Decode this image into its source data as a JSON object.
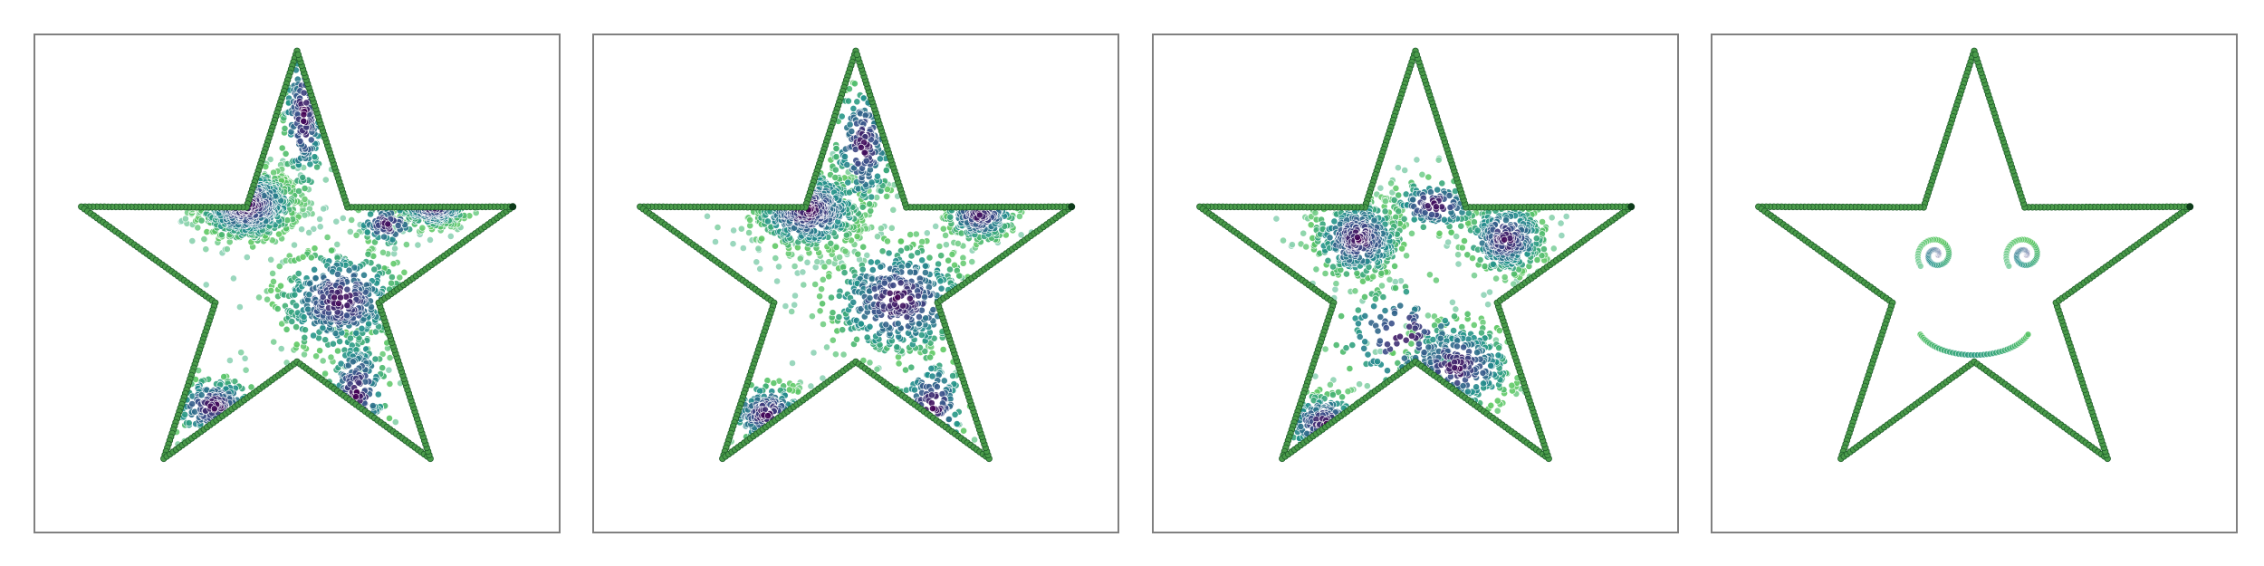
{
  "chart_data": [
    {
      "type": "scatter",
      "title": "",
      "xlabel": "",
      "ylabel": "",
      "xlim": [
        -1.1,
        1.1
      ],
      "ylim": [
        -1.08,
        1.02
      ],
      "grid": false,
      "boundary": {
        "shape": "star",
        "points": 5,
        "outer_radius": 0.95,
        "inner_radius": 0.36,
        "color": "#4a9a4a",
        "edge_color": "#1f5e2a"
      },
      "clusters": [
        {
          "x": -0.21,
          "y": 0.3,
          "sx": 0.11,
          "sy": 0.08,
          "n": 520
        },
        {
          "x": 0.57,
          "y": 0.3,
          "sx": 0.08,
          "sy": 0.05,
          "n": 200
        },
        {
          "x": 0.03,
          "y": 0.68,
          "sx": 0.05,
          "sy": 0.18,
          "n": 180
        },
        {
          "x": 0.18,
          "y": -0.1,
          "sx": 0.14,
          "sy": 0.12,
          "n": 430
        },
        {
          "x": 0.25,
          "y": -0.5,
          "sx": 0.07,
          "sy": 0.15,
          "n": 140
        },
        {
          "x": -0.35,
          "y": -0.55,
          "sx": 0.1,
          "sy": 0.07,
          "n": 170
        },
        {
          "x": 0.38,
          "y": 0.22,
          "sx": 0.07,
          "sy": 0.05,
          "n": 90
        }
      ]
    },
    {
      "type": "scatter",
      "title": "",
      "xlabel": "",
      "ylabel": "",
      "xlim": [
        -1.1,
        1.1
      ],
      "ylim": [
        -1.08,
        1.02
      ],
      "grid": false,
      "boundary": {
        "shape": "star",
        "points": 5,
        "outer_radius": 0.95,
        "inner_radius": 0.36,
        "color": "#4a9a4a",
        "edge_color": "#1f5e2a"
      },
      "clusters": [
        {
          "x": -0.2,
          "y": 0.28,
          "sx": 0.12,
          "sy": 0.09,
          "n": 520
        },
        {
          "x": 0.52,
          "y": 0.26,
          "sx": 0.08,
          "sy": 0.06,
          "n": 200
        },
        {
          "x": 0.03,
          "y": 0.55,
          "sx": 0.07,
          "sy": 0.15,
          "n": 190
        },
        {
          "x": 0.18,
          "y": -0.1,
          "sx": 0.16,
          "sy": 0.13,
          "n": 440
        },
        {
          "x": 0.32,
          "y": -0.55,
          "sx": 0.08,
          "sy": 0.12,
          "n": 110
        },
        {
          "x": -0.37,
          "y": -0.58,
          "sx": 0.09,
          "sy": 0.07,
          "n": 160
        }
      ]
    },
    {
      "type": "scatter",
      "title": "",
      "xlabel": "",
      "ylabel": "",
      "xlim": [
        -1.1,
        1.1
      ],
      "ylim": [
        -1.08,
        1.02
      ],
      "grid": false,
      "boundary": {
        "shape": "star",
        "points": 5,
        "outer_radius": 0.95,
        "inner_radius": 0.36,
        "color": "#4a9a4a",
        "edge_color": "#1f5e2a"
      },
      "clusters": [
        {
          "x": -0.24,
          "y": 0.16,
          "sx": 0.1,
          "sy": 0.09,
          "n": 430
        },
        {
          "x": 0.38,
          "y": 0.16,
          "sx": 0.09,
          "sy": 0.08,
          "n": 340
        },
        {
          "x": 0.08,
          "y": 0.3,
          "sx": 0.1,
          "sy": 0.06,
          "n": 140
        },
        {
          "x": 0.17,
          "y": -0.38,
          "sx": 0.13,
          "sy": 0.1,
          "n": 290
        },
        {
          "x": -0.38,
          "y": -0.62,
          "sx": 0.1,
          "sy": 0.07,
          "n": 150
        },
        {
          "x": -0.05,
          "y": -0.25,
          "sx": 0.15,
          "sy": 0.12,
          "n": 120
        }
      ]
    },
    {
      "type": "scatter",
      "title": "",
      "xlabel": "",
      "ylabel": "",
      "xlim": [
        -1.1,
        1.1
      ],
      "ylim": [
        -1.08,
        1.02
      ],
      "grid": false,
      "boundary": {
        "shape": "star",
        "points": 5,
        "outer_radius": 0.95,
        "inner_radius": 0.36,
        "color": "#4a9a4a",
        "edge_color": "#1f5e2a"
      },
      "face": {
        "eyes": [
          {
            "x": -0.16,
            "y": 0.09,
            "r": 0.08
          },
          {
            "x": 0.21,
            "y": 0.09,
            "r": 0.08
          }
        ],
        "smile": {
          "x": 0.0,
          "y": -0.2,
          "r": 0.24,
          "from_deg": 200,
          "to_deg": 340
        }
      }
    }
  ],
  "colormap": [
    "#440154",
    "#3b528b",
    "#21918c",
    "#5ec962",
    "#8fd3b6"
  ]
}
